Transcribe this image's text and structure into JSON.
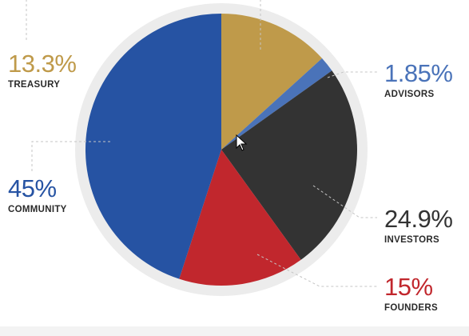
{
  "chart_data": {
    "type": "pie",
    "slices": [
      {
        "pct_label": "13.3%",
        "name": "TREASURY",
        "value": 13.3,
        "color": "#bf9a4a"
      },
      {
        "pct_label": "1.85%",
        "name": "ADVISORS",
        "value": 1.85,
        "color": "#4a73b9"
      },
      {
        "pct_label": "24.9%",
        "name": "INVESTORS",
        "value": 24.9,
        "color": "#333333"
      },
      {
        "pct_label": "15%",
        "name": "FOUNDERS",
        "value": 15,
        "color": "#c1272d"
      },
      {
        "pct_label": "45%",
        "name": "COMMUNITY",
        "value": 45,
        "color": "#2653a3"
      }
    ],
    "start": "12 o'clock",
    "direction": "clockwise"
  },
  "colors": {
    "ring": "#ececec",
    "leader": "#c4c4c4"
  }
}
